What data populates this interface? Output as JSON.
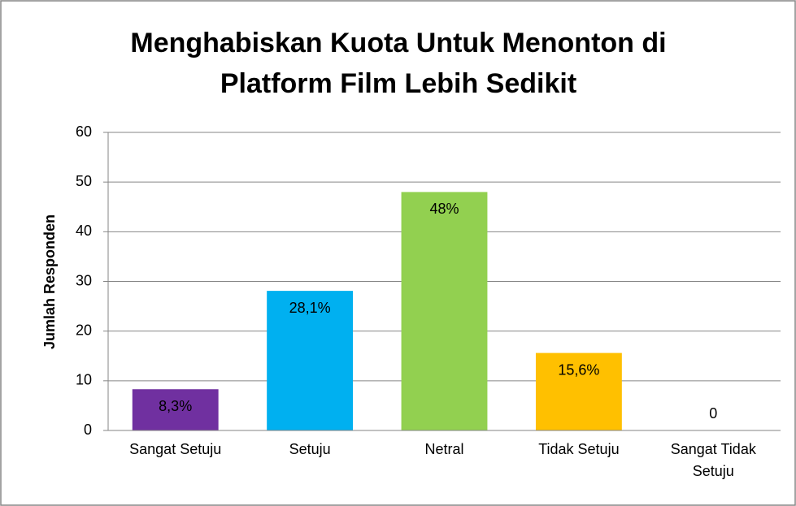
{
  "chart_data": {
    "type": "bar",
    "title": "Menghabiskan Kuota Untuk Menonton di Platform Film Lebih Sedikit",
    "y_label": "Jumlah Responden",
    "categories": [
      "Sangat Setuju",
      "Setuju",
      "Netral",
      "Tidak Setuju",
      "Sangat Tidak Setuju"
    ],
    "values": [
      8.3,
      28.1,
      48,
      15.6,
      0
    ],
    "value_labels": [
      "8,3%",
      "28,1%",
      "48%",
      "15,6%",
      "0"
    ],
    "colors": [
      "#7030a0",
      "#00b0f0",
      "#92d050",
      "#ffc000",
      "#ffc000"
    ],
    "ylim": [
      0,
      60
    ],
    "yticks": [
      0,
      10,
      20,
      30,
      40,
      50,
      60
    ],
    "grid": true
  }
}
